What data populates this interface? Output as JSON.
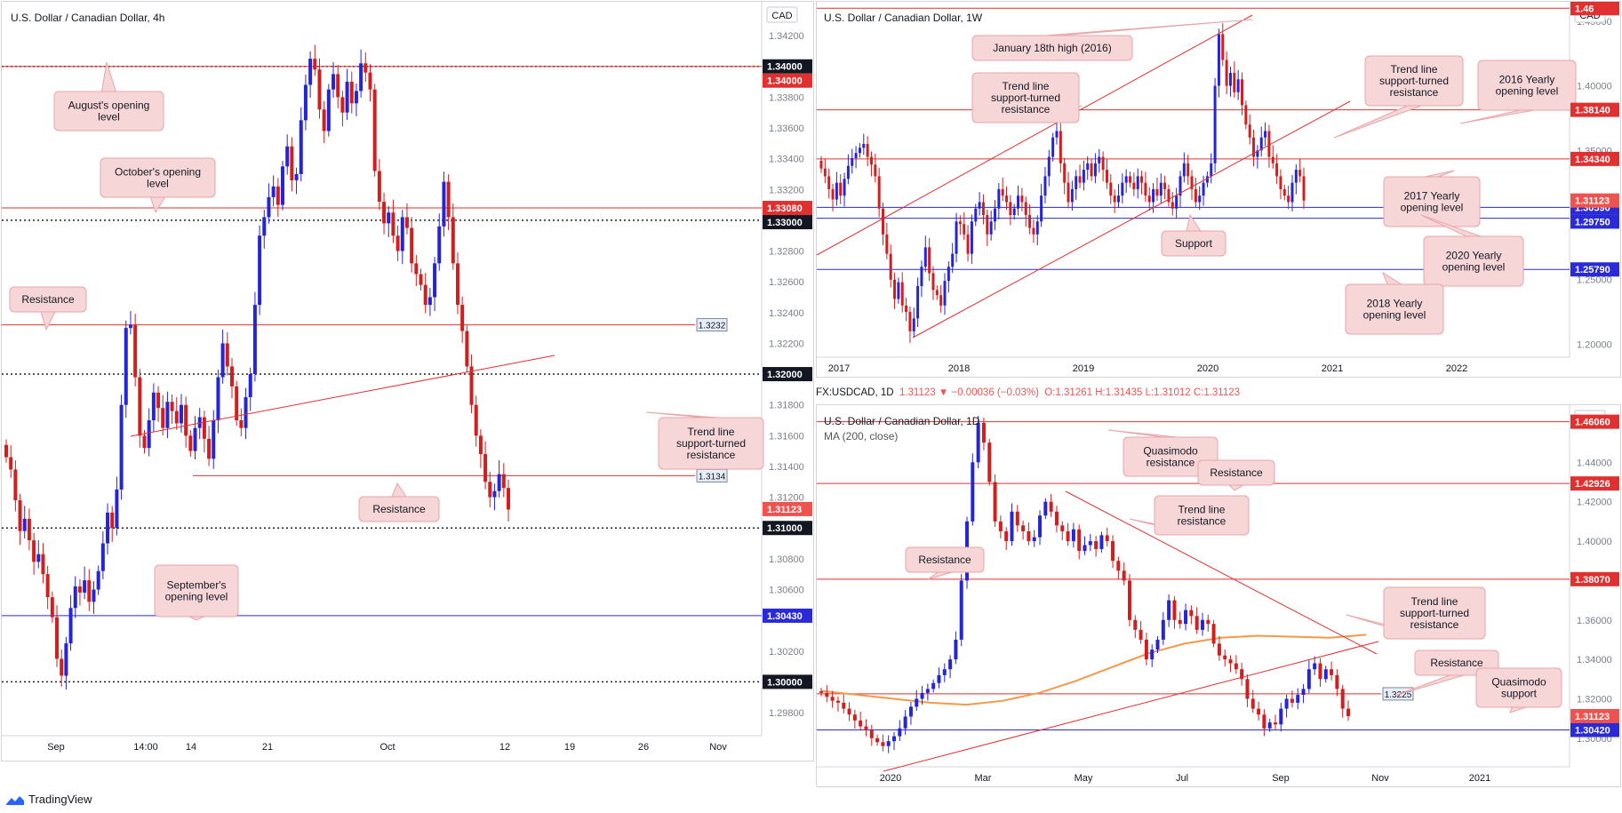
{
  "brand": "TradingView",
  "colors": {
    "bull": "#2525d8",
    "bear": "#d11f1f",
    "level_red": "#e03030",
    "level_blue": "#2a2ad8",
    "callout_bg": "#f6d6d7",
    "callout_border": "#e7a5a8",
    "ma": "#f2994a"
  },
  "header_row": {
    "symbol": "FX:USDCAD, 1D",
    "value": "1.31123",
    "change": "▼ −0.00036 (−0.03%)",
    "ohlc": "O:1.31261 H:1.31435 L:1.31012 C:1.31123"
  },
  "chart_data": [
    {
      "id": "h4",
      "type": "candlestick",
      "title": "U.S. Dollar / Canadian Dollar, 4h",
      "currency": "CAD",
      "ylim": [
        1.2965,
        1.3442
      ],
      "x_ticks": [
        "Sep",
        "14:00",
        "14",
        "21",
        "Oct",
        "12",
        "19",
        "26",
        "Nov"
      ],
      "y_ticks": [
        "1.34200",
        "1.33800",
        "1.33600",
        "1.33400",
        "1.33200",
        "1.32800",
        "1.32600",
        "1.32400",
        "1.32200",
        "1.31800",
        "1.31600",
        "1.31400",
        "1.31200",
        "1.30800",
        "1.30600",
        "1.30200",
        "1.29800"
      ],
      "price_badges": [
        "1.34000",
        "1.33080",
        "1.33000",
        "1.32000",
        "1.31123",
        "1.31000",
        "1.30430",
        "1.30000"
      ],
      "levels": [
        {
          "price": 1.34,
          "style": "dotted",
          "badge": "1.34000"
        },
        {
          "price": 1.34,
          "style": "red",
          "badge": "1.34000"
        },
        {
          "price": 1.3308,
          "style": "red",
          "badge": "1.33080"
        },
        {
          "price": 1.33,
          "style": "dotted",
          "badge": "1.33000"
        },
        {
          "price": 1.3232,
          "style": "red",
          "tag": "1.3232"
        },
        {
          "price": 1.32,
          "style": "dotted",
          "badge": "1.32000"
        },
        {
          "price": 1.3134,
          "style": "red",
          "tag": "1.3134"
        },
        {
          "price": 1.31,
          "style": "dotted",
          "badge": "1.31000"
        },
        {
          "price": 1.3043,
          "style": "blue",
          "badge": "1.30430"
        },
        {
          "price": 1.3,
          "style": "dotted",
          "badge": "1.30000"
        }
      ],
      "trendlines": [
        {
          "from": {
            "x": "Sep 10",
            "y": 1.3119
          },
          "to": {
            "x": "Oct 13",
            "y": 1.3178
          }
        }
      ],
      "callouts": [
        "August's opening level",
        "October's opening level",
        "Resistance",
        "Trend line support-turned resistance",
        "Resistance",
        "September's opening level"
      ],
      "series": [
        {
          "name": "USDCAD 4h close",
          "close": [
            1.3146,
            1.3138,
            1.3118,
            1.3098,
            1.3106,
            1.3092,
            1.3078,
            1.3083,
            1.307,
            1.3055,
            1.3042,
            1.3015,
            1.3004,
            1.3025,
            1.3048,
            1.3062,
            1.3058,
            1.3066,
            1.3052,
            1.306,
            1.3072,
            1.309,
            1.311,
            1.31,
            1.3125,
            1.318,
            1.323,
            1.3232,
            1.3198,
            1.316,
            1.3152,
            1.317,
            1.3188,
            1.3178,
            1.3165,
            1.3182,
            1.3176,
            1.3168,
            1.318,
            1.316,
            1.315,
            1.3165,
            1.3172,
            1.3158,
            1.3145,
            1.317,
            1.3198,
            1.322,
            1.3205,
            1.3192,
            1.317,
            1.3165,
            1.3185,
            1.32,
            1.3245,
            1.329,
            1.3302,
            1.3315,
            1.3322,
            1.331,
            1.3335,
            1.3348,
            1.3326,
            1.333,
            1.3365,
            1.3388,
            1.3405,
            1.3398,
            1.3372,
            1.3358,
            1.3385,
            1.3395,
            1.338,
            1.337,
            1.339,
            1.3376,
            1.3384,
            1.3402,
            1.3396,
            1.3385,
            1.3332,
            1.3312,
            1.3298,
            1.3305,
            1.329,
            1.328,
            1.3302,
            1.3295,
            1.3272,
            1.3265,
            1.3258,
            1.3245,
            1.325,
            1.3272,
            1.3296,
            1.3325,
            1.3302,
            1.3272,
            1.3245,
            1.3228,
            1.3205,
            1.318,
            1.316,
            1.3148,
            1.313,
            1.312,
            1.3124,
            1.3135,
            1.3126,
            1.3112
          ]
        }
      ]
    },
    {
      "id": "w1",
      "type": "candlestick",
      "title": "U.S. Dollar / Canadian Dollar, 1W",
      "currency": "CAD",
      "ylim": [
        1.19,
        1.465
      ],
      "x_ticks": [
        "2017",
        "2018",
        "2019",
        "2020",
        "2021",
        "2022"
      ],
      "y_ticks": [
        "1.45000",
        "1.40000",
        "1.35000",
        "1.25000",
        "1.20000"
      ],
      "price_badges": [
        "1.46",
        "1.38140",
        "1.34340",
        "1.31123",
        "1.30590",
        "1.29750",
        "1.25790"
      ],
      "levels": [
        {
          "price": 1.46,
          "style": "red",
          "badge": "1.46"
        },
        {
          "price": 1.3814,
          "style": "red",
          "badge": "1.38140"
        },
        {
          "price": 1.3434,
          "style": "red",
          "badge": "1.34340"
        },
        {
          "price": 1.3059,
          "style": "blue",
          "badge": "1.30590"
        },
        {
          "price": 1.2975,
          "style": "blue",
          "badge": "1.29750"
        },
        {
          "price": 1.2579,
          "style": "blue",
          "badge": "1.25790"
        }
      ],
      "trendlines": [
        {
          "from": {
            "x": "2016-12",
            "y": 1.28
          },
          "to": {
            "x": "2020-03",
            "y": 1.461
          }
        },
        {
          "from": {
            "x": "2017-08",
            "y": 1.2055
          },
          "to": {
            "x": "2020-10",
            "y": 1.386
          }
        }
      ],
      "callouts": [
        "January 18th high (2016)",
        "Trend line support-turned resistance",
        "Trend line support-turned resistance",
        "2016 Yearly opening level",
        "2017 Yearly opening level",
        "2020 Yearly opening level",
        "Support",
        "2018 Yearly opening level"
      ],
      "series": [
        {
          "name": "USDCAD weekly close",
          "close": [
            1.336,
            1.33,
            1.32,
            1.312,
            1.325,
            1.315,
            1.328,
            1.338,
            1.344,
            1.348,
            1.352,
            1.355,
            1.345,
            1.339,
            1.33,
            1.305,
            1.285,
            1.27,
            1.25,
            1.235,
            1.248,
            1.23,
            1.225,
            1.21,
            1.22,
            1.245,
            1.26,
            1.275,
            1.255,
            1.242,
            1.238,
            1.23,
            1.249,
            1.26,
            1.27,
            1.295,
            1.293,
            1.285,
            1.27,
            1.295,
            1.305,
            1.31,
            1.3,
            1.285,
            1.295,
            1.305,
            1.32,
            1.315,
            1.31,
            1.3,
            1.305,
            1.315,
            1.31,
            1.3,
            1.29,
            1.285,
            1.295,
            1.315,
            1.33,
            1.345,
            1.36,
            1.365,
            1.34,
            1.325,
            1.31,
            1.32,
            1.33,
            1.325,
            1.335,
            1.34,
            1.33,
            1.34,
            1.345,
            1.335,
            1.325,
            1.315,
            1.31,
            1.315,
            1.325,
            1.33,
            1.325,
            1.32,
            1.33,
            1.325,
            1.315,
            1.31,
            1.32,
            1.315,
            1.325,
            1.32,
            1.31,
            1.305,
            1.315,
            1.33,
            1.34,
            1.33,
            1.32,
            1.31,
            1.315,
            1.325,
            1.33,
            1.34,
            1.4,
            1.44,
            1.42,
            1.4,
            1.41,
            1.395,
            1.405,
            1.385,
            1.37,
            1.36,
            1.345,
            1.35,
            1.36,
            1.365,
            1.345,
            1.34,
            1.33,
            1.32,
            1.315,
            1.31,
            1.325,
            1.335,
            1.33,
            1.3112
          ]
        }
      ]
    },
    {
      "id": "d1",
      "type": "candlestick",
      "title": "U.S. Dollar / Canadian Dollar, 1D",
      "currency": "CAD",
      "indicator": "MA (200, close)",
      "ylim": [
        1.2855,
        1.469
      ],
      "x_ticks": [
        "2020",
        "Mar",
        "May",
        "Jul",
        "Sep",
        "Nov",
        "2021"
      ],
      "y_ticks": [
        "1.44000",
        "1.42000",
        "1.40000",
        "1.36000",
        "1.34000",
        "1.32000",
        "1.30000"
      ],
      "price_badges": [
        "1.46060",
        "1.42926",
        "1.38070",
        "1.31123",
        "1.30420"
      ],
      "levels": [
        {
          "price": 1.4606,
          "style": "red",
          "badge": "1.46060"
        },
        {
          "price": 1.42926,
          "style": "red",
          "badge": "1.42926"
        },
        {
          "price": 1.3807,
          "style": "red",
          "badge": "1.38070"
        },
        {
          "price": 1.3225,
          "style": "red",
          "tag": "1.3225"
        },
        {
          "price": 1.3042,
          "style": "blue",
          "badge": "1.30420"
        }
      ],
      "trendlines": [
        {
          "from": {
            "x": "Apr 21",
            "y": 1.4265
          },
          "to": {
            "x": "Oct 15",
            "y": 1.325
          }
        },
        {
          "from": {
            "x": "Jan 01",
            "y": 1.2955
          },
          "to": {
            "x": "Oct 10",
            "y": 1.364
          }
        }
      ],
      "ma_200": [
        1.324,
        1.322,
        1.32,
        1.318,
        1.317,
        1.319,
        1.323,
        1.329,
        1.336,
        1.343,
        1.348,
        1.351,
        1.352,
        1.3515,
        1.351,
        1.3525
      ],
      "callouts": [
        "Quasimodo resistance",
        "Resistance",
        "Trend line resistance",
        "Resistance",
        "Trend line support-turned resistance",
        "Resistance",
        "Quasimodo support"
      ],
      "series": [
        {
          "name": "USDCAD daily close",
          "close": [
            1.323,
            1.321,
            1.319,
            1.318,
            1.315,
            1.312,
            1.309,
            1.306,
            1.304,
            1.3,
            1.298,
            1.296,
            1.2985,
            1.301,
            1.305,
            1.311,
            1.316,
            1.32,
            1.323,
            1.325,
            1.328,
            1.332,
            1.335,
            1.34,
            1.35,
            1.38,
            1.41,
            1.44,
            1.46,
            1.45,
            1.43,
            1.41,
            1.405,
            1.4,
            1.415,
            1.408,
            1.405,
            1.4,
            1.402,
            1.413,
            1.42,
            1.415,
            1.408,
            1.405,
            1.4,
            1.406,
            1.395,
            1.398,
            1.4,
            1.396,
            1.403,
            1.4,
            1.39,
            1.385,
            1.38,
            1.36,
            1.355,
            1.35,
            1.34,
            1.345,
            1.35,
            1.36,
            1.37,
            1.36,
            1.358,
            1.365,
            1.362,
            1.355,
            1.36,
            1.358,
            1.348,
            1.342,
            1.34,
            1.338,
            1.335,
            1.33,
            1.32,
            1.315,
            1.312,
            1.305,
            1.308,
            1.307,
            1.315,
            1.32,
            1.318,
            1.322,
            1.325,
            1.335,
            1.338,
            1.33,
            1.335,
            1.332,
            1.325,
            1.315,
            1.3112
          ]
        }
      ]
    }
  ]
}
